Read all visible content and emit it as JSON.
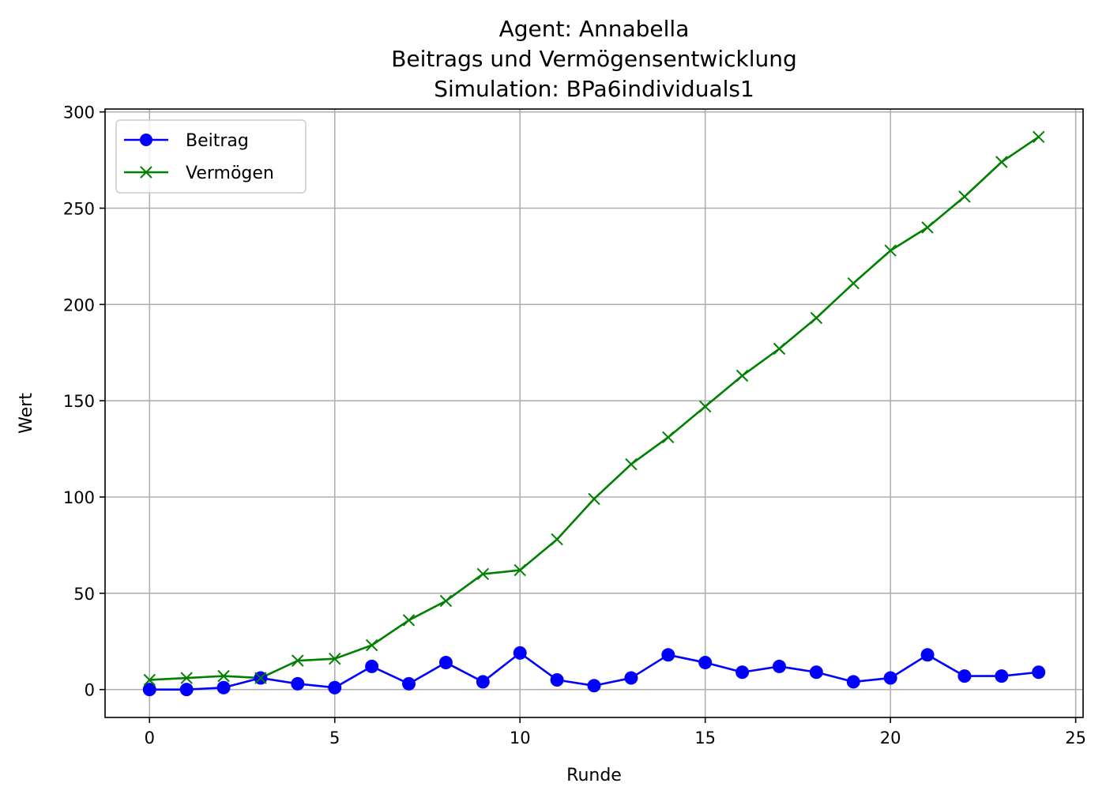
{
  "chart_data": {
    "type": "line",
    "title_lines": [
      "Agent: Annabella",
      "Beitrags und Vermögensentwicklung",
      "Simulation: BPa6individuals1"
    ],
    "xlabel": "Runde",
    "ylabel": "Wert",
    "xlim": [
      -1.2,
      25.2
    ],
    "ylim": [
      -14.5,
      301.5
    ],
    "xticks": [
      0,
      5,
      10,
      15,
      20,
      25
    ],
    "yticks": [
      0,
      50,
      100,
      150,
      200,
      250,
      300
    ],
    "grid": true,
    "legend_position": "upper-left",
    "x": [
      0,
      1,
      2,
      3,
      4,
      5,
      6,
      7,
      8,
      9,
      10,
      11,
      12,
      13,
      14,
      15,
      16,
      17,
      18,
      19,
      20,
      21,
      22,
      23,
      24
    ],
    "series": [
      {
        "name": "Beitrag",
        "color": "#0000ff",
        "marker": "circle",
        "values": [
          0,
          0,
          1,
          6,
          3,
          1,
          12,
          3,
          14,
          4,
          19,
          5,
          2,
          6,
          18,
          14,
          9,
          12,
          9,
          4,
          6,
          18,
          7,
          7,
          9
        ]
      },
      {
        "name": "Vermögen",
        "color": "#008000",
        "marker": "x",
        "values": [
          5,
          6,
          7,
          6,
          15,
          16,
          23,
          36,
          46,
          60,
          62,
          78,
          99,
          117,
          131,
          147,
          163,
          177,
          193,
          211,
          228,
          240,
          256,
          274,
          287
        ]
      }
    ]
  }
}
